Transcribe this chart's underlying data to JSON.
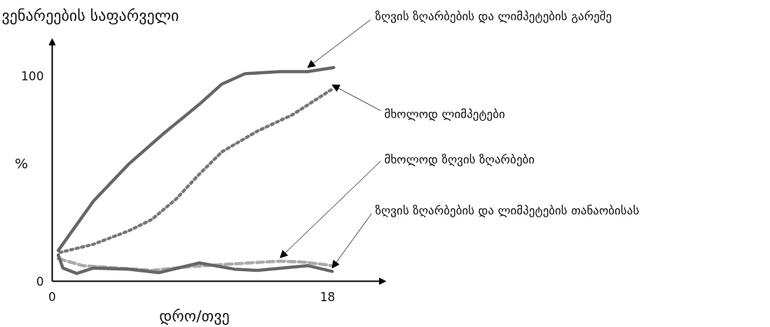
{
  "chart_data": {
    "type": "line",
    "title": "ვენარეების საფარველი",
    "xlabel": "დრო/თვე",
    "ylabel": "%",
    "xlim": [
      0,
      21.8
    ],
    "ylim": [
      0,
      118
    ],
    "xticks": [
      0,
      18
    ],
    "yticks": [
      0,
      100
    ],
    "grid": false,
    "marker": "none",
    "series": [
      {
        "color": "#666666",
        "line_style": "solid",
        "x": [
          0.4,
          2.7,
          5.0,
          7.3,
          9.6,
          11.1,
          12.6,
          14.9,
          16.7,
          18.4
        ],
        "values": [
          15,
          39,
          57,
          72,
          86,
          96,
          101,
          102,
          102,
          104
        ]
      },
      {
        "color": "#777777",
        "line_style": "dotted",
        "x": [
          0.5,
          2.7,
          5.0,
          6.5,
          8.1,
          9.6,
          11.1,
          13.4,
          15.7,
          18.3
        ],
        "values": [
          14,
          18,
          24.5,
          30,
          40,
          52,
          63,
          73,
          81,
          93.5
        ]
      },
      {
        "color": "#aaaaaa",
        "line_style": "dashed",
        "x": [
          0.4,
          2.0,
          4.3,
          6.5,
          8.8,
          11.1,
          14.9,
          16.5,
          18.3
        ],
        "values": [
          11,
          7.6,
          6.4,
          5.3,
          7,
          8.1,
          9.8,
          9.3,
          7.6
        ]
      },
      {
        "color": "#666666",
        "line_style": "solid",
        "x": [
          0.4,
          0.7,
          1.6,
          2.7,
          5.0,
          7.0,
          9.6,
          11.9,
          13.4,
          16.7,
          18.3
        ],
        "values": [
          12.7,
          6.4,
          3.8,
          6.4,
          5.9,
          4.2,
          8.9,
          5.9,
          5.3,
          7.6,
          4.8
        ]
      }
    ],
    "annotations": [
      {
        "text": "ზღვის ზღარბების და ლიმპეტების გარეშე",
        "x": 16.7,
        "y": 102
      },
      {
        "text": "მხოლოდ ლიმპეტები",
        "x": 18.3,
        "y": 93.5
      },
      {
        "text": "მხოლოდ ზღვის ზღარბები",
        "x": 14.9,
        "y": 9.8
      },
      {
        "text": "ზღვის ზღარბების და ლიმპეტების თანაობისას",
        "x": 18.3,
        "y": 4.8
      }
    ]
  }
}
